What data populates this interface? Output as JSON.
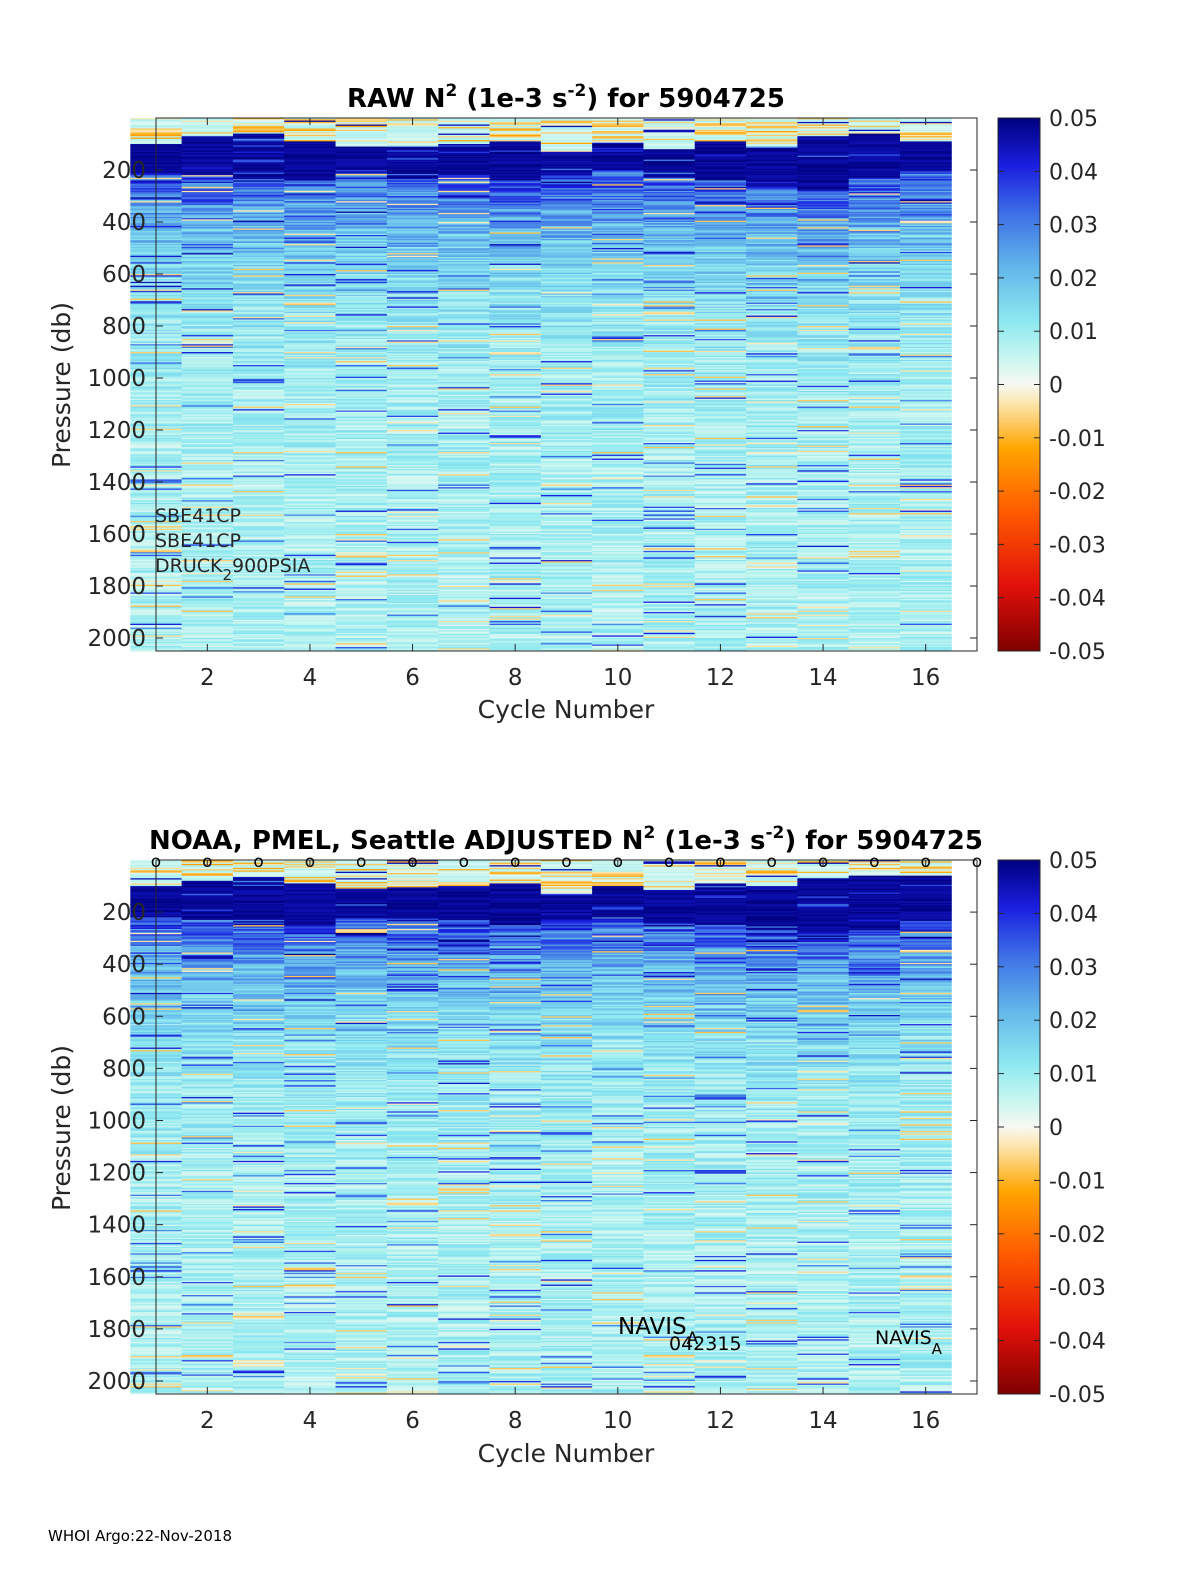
{
  "footer": "WHOI Argo:22-Nov-2018",
  "chart_data": [
    {
      "type": "heatmap",
      "title": {
        "part1": "RAW N",
        "sup1": "2",
        "part2": " (1e-3 s",
        "sup2": "-2",
        "part3": ") for 5904725"
      },
      "xlabel": "Cycle Number",
      "ylabel": "Pressure (db)",
      "xlim": [
        1,
        17
      ],
      "ylim": [
        2050,
        0
      ],
      "xticks": [
        2,
        4,
        6,
        8,
        10,
        12,
        14,
        16
      ],
      "yticks": [
        200,
        400,
        600,
        800,
        1000,
        1200,
        1400,
        1600,
        1800,
        2000
      ],
      "colorbar": {
        "range": [
          -0.05,
          0.05
        ],
        "ticks": [
          "0.05",
          "0.04",
          "0.03",
          "0.02",
          "0.01",
          "0",
          "-0.01",
          "-0.02",
          "-0.03",
          "-0.04",
          "-0.05"
        ]
      },
      "cycles": [
        1,
        2,
        3,
        4,
        5,
        6,
        7,
        8,
        9,
        10,
        11,
        12,
        13,
        14,
        15,
        16
      ],
      "mixed_layer_top_db": [
        100,
        70,
        60,
        90,
        110,
        110,
        100,
        90,
        130,
        100,
        120,
        90,
        110,
        70,
        60,
        90
      ],
      "strong_layer_bottom_db": [
        210,
        220,
        230,
        240,
        200,
        230,
        220,
        240,
        220,
        200,
        230,
        240,
        260,
        280,
        230,
        200
      ],
      "annotations": {
        "sensor1": "SBE41CP",
        "sensor2": "SBE41CP",
        "pressure_main": "DRUCK",
        "pressure_sub": "2",
        "pressure_rest": "900PSIA"
      }
    },
    {
      "type": "heatmap",
      "title": {
        "part1": "NOAA, PMEL, Seattle  ADJUSTED N",
        "sup1": "2",
        "part2": " (1e-3 s",
        "sup2": "-2",
        "part3": ") for 5904725"
      },
      "xlabel": "Cycle Number",
      "ylabel": "Pressure (db)",
      "xlim": [
        1,
        17
      ],
      "ylim": [
        2050,
        0
      ],
      "xticks": [
        2,
        4,
        6,
        8,
        10,
        12,
        14,
        16
      ],
      "yticks": [
        200,
        400,
        600,
        800,
        1000,
        1200,
        1400,
        1600,
        1800,
        2000
      ],
      "colorbar": {
        "range": [
          -0.05,
          0.05
        ],
        "ticks": [
          "0.05",
          "0.04",
          "0.03",
          "0.02",
          "0.01",
          "0",
          "-0.01",
          "-0.02",
          "-0.03",
          "-0.04",
          "-0.05"
        ]
      },
      "cycles": [
        1,
        2,
        3,
        4,
        5,
        6,
        7,
        8,
        9,
        10,
        11,
        12,
        13,
        14,
        15,
        16
      ],
      "mixed_layer_top_db": [
        100,
        80,
        70,
        90,
        110,
        110,
        100,
        90,
        130,
        100,
        120,
        90,
        100,
        70,
        60,
        60
      ],
      "strong_layer_bottom_db": [
        220,
        230,
        240,
        250,
        220,
        240,
        230,
        250,
        230,
        220,
        240,
        250,
        270,
        280,
        270,
        240
      ],
      "marker_symbol": "o",
      "marker_x": [
        1,
        2,
        3,
        4,
        5,
        6,
        7,
        8,
        9,
        10,
        11,
        12,
        13,
        14,
        15,
        16,
        17
      ],
      "annotations": {
        "navis1_main": "NAVIS",
        "navis1_sub": "A",
        "navis1_serial": "042315",
        "navis2_main": "NAVIS",
        "navis2_sub": "A"
      }
    }
  ]
}
